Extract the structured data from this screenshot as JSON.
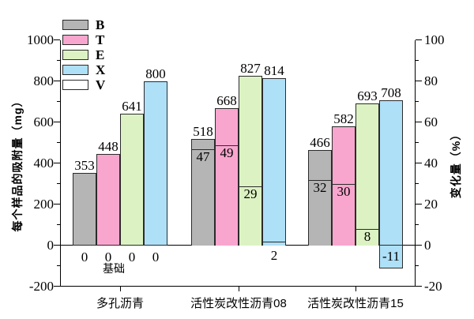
{
  "figure": {
    "background": "#ffffff",
    "left_axis_title": "每个样品的吸附量（mg）",
    "right_axis_title": "变化量（%）"
  },
  "chart_data": {
    "type": "bar",
    "title": "",
    "categories": [
      "多孔沥青",
      "活性炭改性沥青08",
      "活性炭改性沥青15"
    ],
    "series": [
      {
        "name": "B",
        "color": "#b5b5b5",
        "values": [
          353,
          518,
          466
        ]
      },
      {
        "name": "T",
        "color": "#f9a6ce",
        "values": [
          448,
          668,
          582
        ]
      },
      {
        "name": "E",
        "color": "#dcf2c3",
        "values": [
          641,
          827,
          693
        ]
      },
      {
        "name": "X",
        "color": "#aee0f8",
        "values": [
          800,
          814,
          708
        ]
      }
    ],
    "overlay_series": {
      "name": "V",
      "axis": "right",
      "unit": "%",
      "pattern": "diagonal-hatch",
      "values": [
        [
          0,
          0,
          0,
          0
        ],
        [
          47,
          49,
          29,
          2
        ],
        [
          32,
          30,
          8,
          -11
        ]
      ]
    },
    "baseline_annotation": "基础",
    "left_axis": {
      "title": "每个样品的吸附量（mg）",
      "min": -200,
      "max": 1000,
      "major_ticks": [
        1000,
        800,
        600,
        400,
        200,
        0,
        -200
      ],
      "minor_step": 100
    },
    "right_axis": {
      "title": "变化量（%）",
      "min": -20,
      "max": 100,
      "major_ticks": [
        100,
        80,
        60,
        40,
        20,
        0,
        -20
      ],
      "minor_step": 10
    },
    "legend": {
      "position": "top-left",
      "entries": [
        "B",
        "T",
        "E",
        "X",
        "V"
      ]
    },
    "grid": false,
    "axis_color": "#000000",
    "bar_border_color": "#2b2b2b"
  }
}
